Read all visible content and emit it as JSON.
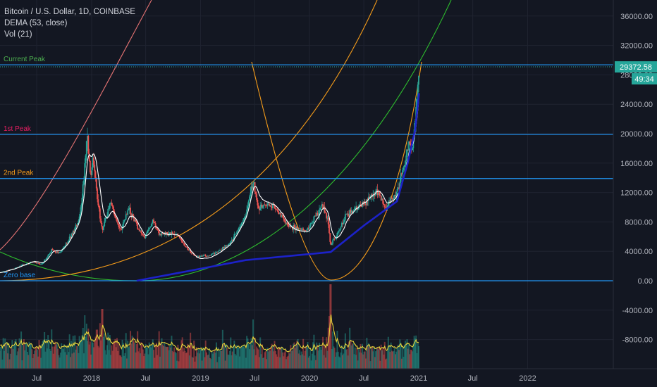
{
  "legend": {
    "symbol_line": "Bitcoin / U.S. Dollar, 1D, COINBASE",
    "indicator_1": "DEMA (53, close)",
    "indicator_2": "Vol (21)"
  },
  "colors": {
    "background": "#131722",
    "grid": "#1f2330",
    "axis_text": "#b2b5be",
    "hline": "#2196f3",
    "candle_up": "#26a69a",
    "candle_down": "#ef5350",
    "dema": "#ffffff",
    "trend": "#1c22c8",
    "vol_ma": "#e6d43a",
    "arc_pink": "#e57373",
    "arc_orange": "#f59c1a",
    "arc_green": "#2ebd2e",
    "price_badge": "#26a69a"
  },
  "chart_data": {
    "type": "candlestick",
    "y_axis_ticks": [
      36000,
      32000,
      28000,
      24000,
      20000,
      16000,
      12000,
      8000,
      4000,
      0,
      -4000,
      -8000
    ],
    "y_axis_labels": [
      "36000.00",
      "32000.00",
      "28000.00",
      "24000.00",
      "20000.00",
      "16000.00",
      "12000.00",
      "8000.00",
      "4000.00",
      "0.00",
      "-4000.00",
      "-8000.00"
    ],
    "ylim": [
      -12000,
      40000
    ],
    "x_axis_labels": [
      {
        "label": "Jul",
        "date": "2017-07"
      },
      {
        "label": "2018",
        "date": "2018-01"
      },
      {
        "label": "Jul",
        "date": "2018-07"
      },
      {
        "label": "2019",
        "date": "2019-01"
      },
      {
        "label": "Jul",
        "date": "2019-07"
      },
      {
        "label": "2020",
        "date": "2020-01"
      },
      {
        "label": "Jul",
        "date": "2020-07"
      },
      {
        "label": "2021",
        "date": "2021-01"
      },
      {
        "label": "Jul",
        "date": "2021-07"
      },
      {
        "label": "2022",
        "date": "2022-01"
      }
    ],
    "horizontal_lines": [
      {
        "label": "Current Peak",
        "price": 29372.58,
        "label_color": "#4caf50"
      },
      {
        "label": "1st Peak",
        "price": 19900,
        "label_color": "#e91e63"
      },
      {
        "label": "2nd Peak",
        "price": 13900,
        "label_color": "#f59c1a"
      },
      {
        "label": "Zero base",
        "price": 0,
        "label_color": "#2196f3"
      }
    ],
    "current_price": "29372.58",
    "countdown": "49:34",
    "price_path": [
      [
        "2017-01-01",
        950
      ],
      [
        "2017-03-01",
        1150
      ],
      [
        "2017-05-01",
        1900
      ],
      [
        "2017-06-15",
        2600
      ],
      [
        "2017-07-15",
        2200
      ],
      [
        "2017-08-20",
        4200
      ],
      [
        "2017-09-15",
        3800
      ],
      [
        "2017-10-20",
        5800
      ],
      [
        "2017-11-20",
        8500
      ],
      [
        "2017-12-17",
        19700
      ],
      [
        "2017-12-28",
        14000
      ],
      [
        "2018-01-06",
        17000
      ],
      [
        "2018-02-06",
        7000
      ],
      [
        "2018-03-05",
        11000
      ],
      [
        "2018-04-06",
        6700
      ],
      [
        "2018-05-05",
        9800
      ],
      [
        "2018-06-28",
        5900
      ],
      [
        "2018-07-25",
        8300
      ],
      [
        "2018-08-15",
        6300
      ],
      [
        "2018-10-15",
        6400
      ],
      [
        "2018-11-20",
        4300
      ],
      [
        "2018-12-15",
        3300
      ],
      [
        "2019-02-01",
        3450
      ],
      [
        "2019-04-05",
        5000
      ],
      [
        "2019-05-30",
        8700
      ],
      [
        "2019-06-26",
        13600
      ],
      [
        "2019-07-15",
        10000
      ],
      [
        "2019-09-01",
        10300
      ],
      [
        "2019-10-20",
        7500
      ],
      [
        "2019-11-25",
        7000
      ],
      [
        "2019-12-18",
        6800
      ],
      [
        "2020-02-12",
        10300
      ],
      [
        "2020-03-01",
        8600
      ],
      [
        "2020-03-12",
        4900
      ],
      [
        "2020-04-29",
        8800
      ],
      [
        "2020-06-01",
        9700
      ],
      [
        "2020-07-25",
        11300
      ],
      [
        "2020-08-17",
        12300
      ],
      [
        "2020-09-08",
        10000
      ],
      [
        "2020-10-20",
        12000
      ],
      [
        "2020-11-10",
        15300
      ],
      [
        "2020-12-01",
        19300
      ],
      [
        "2020-12-10",
        18200
      ],
      [
        "2020-12-26",
        25000
      ],
      [
        "2021-01-02",
        27500
      ]
    ],
    "trend_line": [
      [
        "2018-06-01",
        0
      ],
      [
        "2018-12-15",
        1500
      ],
      [
        "2019-06-01",
        2800
      ],
      [
        "2020-03-12",
        3900
      ],
      [
        "2020-07-01",
        7500
      ],
      [
        "2020-10-20",
        10800
      ],
      [
        "2020-11-25",
        16000
      ],
      [
        "2020-12-20",
        20500
      ],
      [
        "2021-01-02",
        25500
      ]
    ]
  }
}
